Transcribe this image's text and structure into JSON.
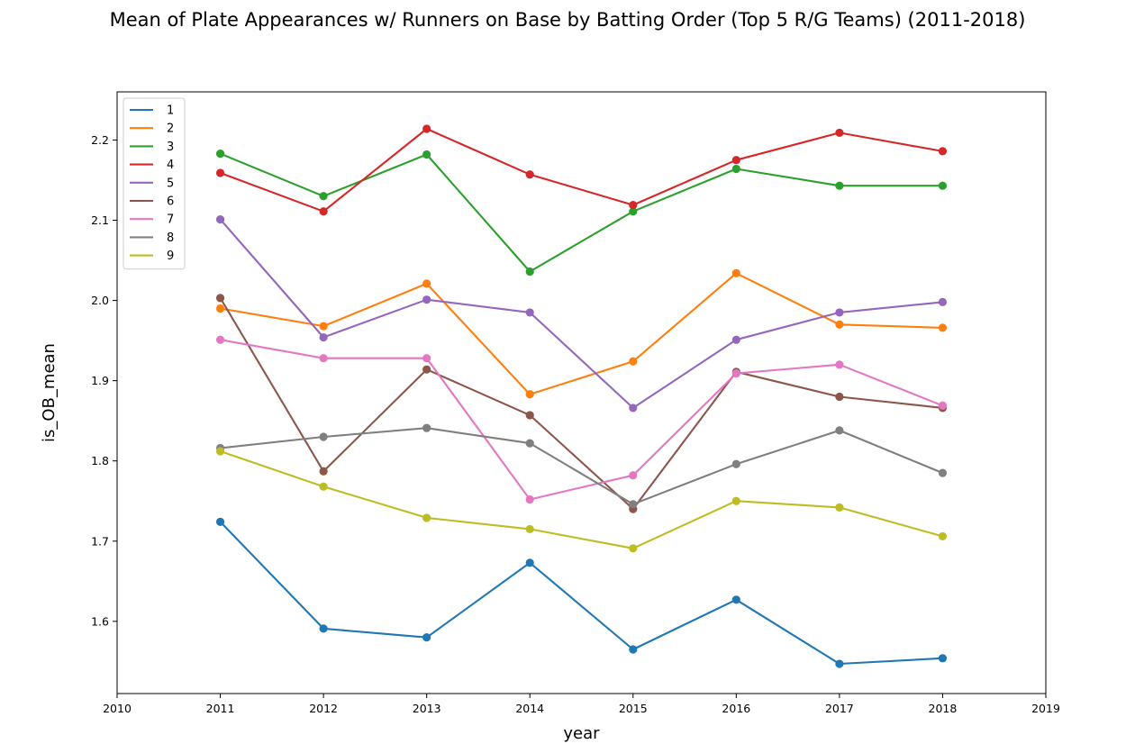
{
  "chart_data": {
    "type": "line",
    "title": "Mean of Plate Appearances w/ Runners on Base by Batting Order (Top 5 R/G Teams) (2011-2018)",
    "xlabel": "year",
    "ylabel": "is_OB_mean",
    "xlim": [
      2010,
      2019
    ],
    "ylim": [
      1.51,
      2.26
    ],
    "x_ticks": [
      2010,
      2011,
      2012,
      2013,
      2014,
      2015,
      2016,
      2017,
      2018,
      2019
    ],
    "y_ticks": [
      1.6,
      1.7,
      1.8,
      1.9,
      2.0,
      2.1,
      2.2
    ],
    "y_tick_labels": [
      "1.6",
      "1.7",
      "1.8",
      "1.9",
      "2.0",
      "2.1",
      "2.2"
    ],
    "grid": false,
    "legend_position": "top-left",
    "x": [
      2011,
      2012,
      2013,
      2014,
      2015,
      2016,
      2017,
      2018
    ],
    "series": [
      {
        "name": "1",
        "color": "#1f77b4",
        "values": [
          1.724,
          1.591,
          1.58,
          1.673,
          1.565,
          1.627,
          1.547,
          1.554
        ]
      },
      {
        "name": "2",
        "color": "#ff7f0e",
        "values": [
          1.99,
          1.968,
          2.021,
          1.883,
          1.924,
          2.034,
          1.97,
          1.966
        ]
      },
      {
        "name": "3",
        "color": "#2ca02c",
        "values": [
          2.183,
          2.13,
          2.182,
          2.036,
          2.111,
          2.164,
          2.143,
          2.143
        ]
      },
      {
        "name": "4",
        "color": "#d62728",
        "values": [
          2.159,
          2.111,
          2.214,
          2.157,
          2.119,
          2.175,
          2.209,
          2.186
        ]
      },
      {
        "name": "5",
        "color": "#9467bd",
        "values": [
          2.101,
          1.954,
          2.001,
          1.985,
          1.866,
          1.951,
          1.985,
          1.998
        ]
      },
      {
        "name": "6",
        "color": "#8c564b",
        "values": [
          2.003,
          1.787,
          1.914,
          1.857,
          1.74,
          1.911,
          1.88,
          1.866
        ]
      },
      {
        "name": "7",
        "color": "#e377c2",
        "values": [
          1.951,
          1.928,
          1.928,
          1.752,
          1.782,
          1.909,
          1.92,
          1.869
        ]
      },
      {
        "name": "8",
        "color": "#7f7f7f",
        "values": [
          1.816,
          1.83,
          1.841,
          1.822,
          1.746,
          1.796,
          1.838,
          1.785
        ]
      },
      {
        "name": "9",
        "color": "#bcbd22",
        "values": [
          1.812,
          1.768,
          1.729,
          1.715,
          1.691,
          1.75,
          1.742,
          1.706
        ]
      }
    ]
  }
}
